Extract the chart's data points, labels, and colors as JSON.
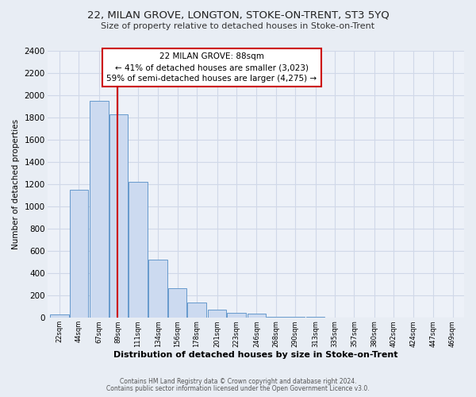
{
  "title": "22, MILAN GROVE, LONGTON, STOKE-ON-TRENT, ST3 5YQ",
  "subtitle": "Size of property relative to detached houses in Stoke-on-Trent",
  "xlabel": "Distribution of detached houses by size in Stoke-on-Trent",
  "ylabel": "Number of detached properties",
  "bin_labels": [
    "22sqm",
    "44sqm",
    "67sqm",
    "89sqm",
    "111sqm",
    "134sqm",
    "156sqm",
    "178sqm",
    "201sqm",
    "223sqm",
    "246sqm",
    "268sqm",
    "290sqm",
    "313sqm",
    "335sqm",
    "357sqm",
    "380sqm",
    "402sqm",
    "424sqm",
    "447sqm",
    "469sqm"
  ],
  "bar_values": [
    30,
    1150,
    1950,
    1830,
    1220,
    520,
    265,
    140,
    75,
    45,
    35,
    10,
    10,
    10,
    5,
    5,
    5,
    5,
    5,
    5,
    5
  ],
  "bar_color": "#ccdaf0",
  "bar_edge_color": "#6699cc",
  "vline_x": 88,
  "vline_color": "#cc0000",
  "annotation_title": "22 MILAN GROVE: 88sqm",
  "annotation_line1": "← 41% of detached houses are smaller (3,023)",
  "annotation_line2": "59% of semi-detached houses are larger (4,275) →",
  "annotation_box_color": "#ffffff",
  "annotation_box_edge": "#cc0000",
  "ylim": [
    0,
    2400
  ],
  "yticks": [
    0,
    200,
    400,
    600,
    800,
    1000,
    1200,
    1400,
    1600,
    1800,
    2000,
    2200,
    2400
  ],
  "bg_color": "#e8edf4",
  "plot_bg_color": "#edf1f8",
  "grid_color": "#d0d8e8",
  "footer1": "Contains HM Land Registry data © Crown copyright and database right 2024.",
  "footer2": "Contains public sector information licensed under the Open Government Licence v3.0."
}
